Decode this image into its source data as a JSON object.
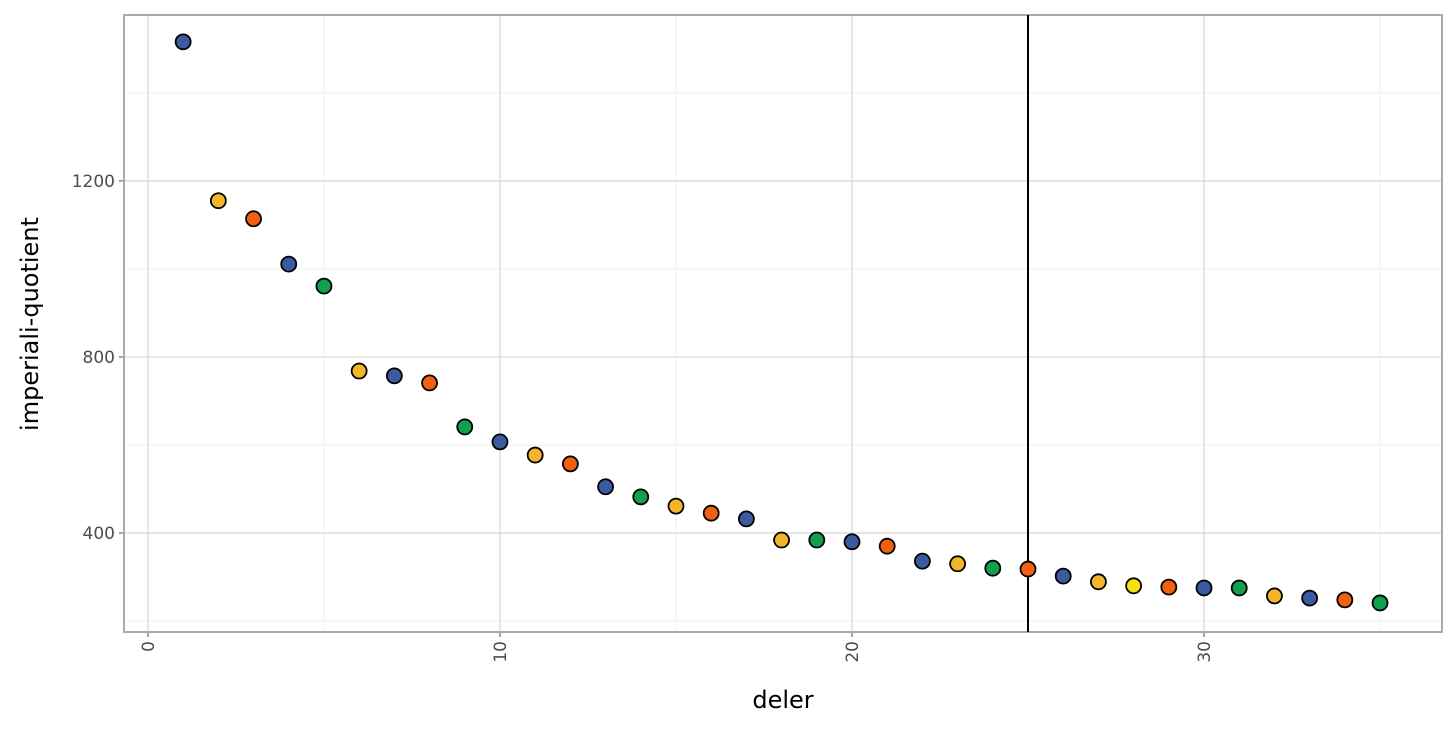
{
  "chart_data": {
    "type": "scatter",
    "xlabel": "deler",
    "ylabel": "imperiali-quotient",
    "x": [
      1,
      2,
      3,
      4,
      5,
      6,
      7,
      8,
      9,
      10,
      11,
      12,
      13,
      14,
      15,
      16,
      17,
      18,
      19,
      20,
      21,
      22,
      23,
      24,
      25,
      26,
      27,
      28,
      29,
      30,
      31,
      32,
      33,
      34,
      35
    ],
    "values": [
      1516,
      1155,
      1114,
      1011,
      961,
      768,
      757,
      741,
      641,
      607,
      577,
      557,
      505,
      482,
      461,
      445,
      432,
      384,
      384,
      380,
      370,
      336,
      330,
      320,
      318,
      302,
      289,
      280,
      277,
      275,
      275,
      257,
      252,
      248,
      241
    ],
    "colors": [
      "#3a5ba0",
      "#f5b52a",
      "#f06010",
      "#3a5ba0",
      "#10a050",
      "#f5b52a",
      "#3a5ba0",
      "#f06010",
      "#10a050",
      "#3a5ba0",
      "#f5b52a",
      "#f06010",
      "#3a5ba0",
      "#10a050",
      "#f5b52a",
      "#f06010",
      "#3a5ba0",
      "#f5b52a",
      "#10a050",
      "#3a5ba0",
      "#f06010",
      "#3a5ba0",
      "#f5b52a",
      "#10a050",
      "#f06010",
      "#3a5ba0",
      "#f5b52a",
      "#f5e010",
      "#f06010",
      "#3a5ba0",
      "#10a050",
      "#f5b52a",
      "#3a5ba0",
      "#f06010",
      "#10a050"
    ],
    "xlim": [
      -0.68,
      36.76
    ],
    "ylim": [
      175,
      1577
    ],
    "xticks": [
      0,
      10,
      20,
      30
    ],
    "yticks": [
      400,
      800,
      1200
    ],
    "xminor": [
      5,
      15,
      25,
      35
    ],
    "yminor": [
      200,
      600,
      1000,
      1400
    ],
    "vline": 25,
    "grid": true
  }
}
